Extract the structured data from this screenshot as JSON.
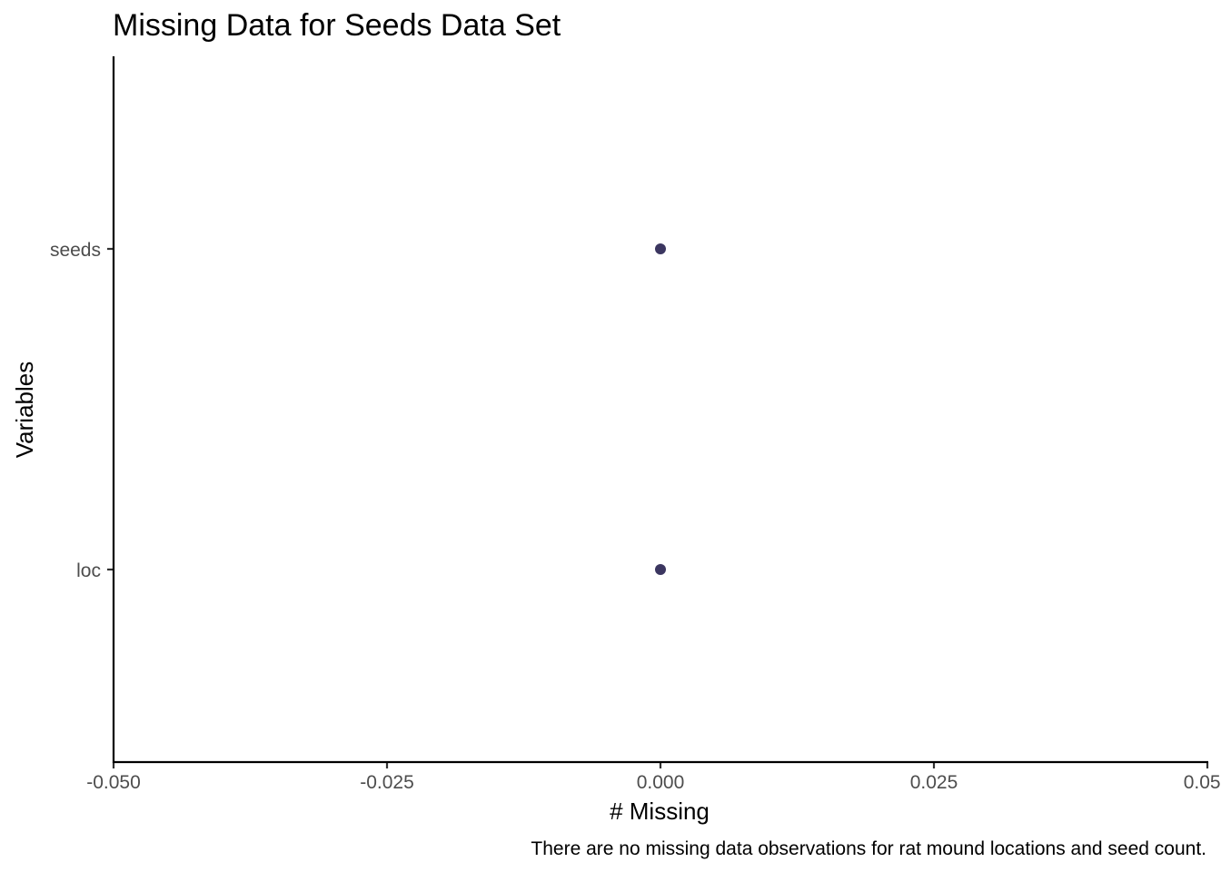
{
  "chart_data": {
    "type": "scatter",
    "title": "Missing Data for Seeds Data Set",
    "xlabel": "# Missing",
    "ylabel": "Variables",
    "caption": "There are no missing data observations for rat mound locations and seed count.",
    "categories": [
      "loc",
      "seeds"
    ],
    "values": [
      0,
      0
    ],
    "xlim": [
      -0.05,
      0.05
    ],
    "x_ticks": [
      -0.05,
      -0.025,
      0,
      0.025,
      0.05
    ],
    "x_tick_labels": [
      "-0.050",
      "-0.025",
      "0.000",
      "0.025",
      "0.050"
    ],
    "grid": false,
    "point_color": "#3b3660"
  }
}
